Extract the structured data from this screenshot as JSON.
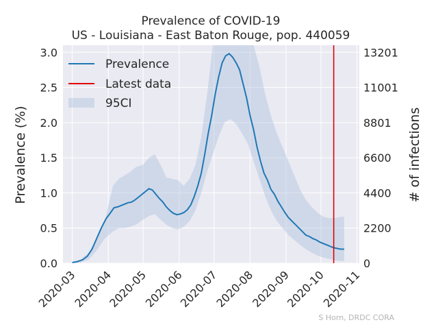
{
  "chart_data": {
    "type": "line",
    "title": "Prevalence of COVID-19",
    "subtitle": "US - Louisiana - East Baton Rouge, pop. 440059",
    "ylabel": "Prevalence (%)",
    "y2label": "# of infections",
    "ylim": [
      0,
      3.1
    ],
    "y2lim": [
      0,
      13642
    ],
    "xlim": [
      "2020-02-22",
      "2020-11-03"
    ],
    "xticks": [
      "2020-03",
      "2020-04",
      "2020-05",
      "2020-06",
      "2020-07",
      "2020-08",
      "2020-09",
      "2020-10",
      "2020-11"
    ],
    "yticks": [
      "0.0",
      "0.5",
      "1.0",
      "1.5",
      "2.0",
      "2.5",
      "3.0"
    ],
    "y2ticks": [
      "0",
      "2200",
      "4400",
      "6600",
      "8801",
      "11001",
      "13201"
    ],
    "grid": true,
    "legend_position": "top-left",
    "legend": [
      "Prevalence",
      "Latest data",
      "95CI"
    ],
    "latest_data_date": "2020-10-12",
    "credit": "S Horn, DRDC CORA",
    "colors": {
      "line": "#1f77b4",
      "band": "#b0c4de",
      "latest": "#e00000",
      "background": "#eaeaf2",
      "grid": "#ffffff"
    },
    "series": [
      {
        "name": "Prevalence",
        "x": [
          "2020-03-01",
          "2020-03-05",
          "2020-03-10",
          "2020-03-14",
          "2020-03-18",
          "2020-03-22",
          "2020-03-26",
          "2020-03-30",
          "2020-04-03",
          "2020-04-06",
          "2020-04-09",
          "2020-04-12",
          "2020-04-15",
          "2020-04-18",
          "2020-04-21",
          "2020-04-24",
          "2020-04-27",
          "2020-04-30",
          "2020-05-03",
          "2020-05-06",
          "2020-05-09",
          "2020-05-12",
          "2020-05-15",
          "2020-05-18",
          "2020-05-21",
          "2020-05-24",
          "2020-05-27",
          "2020-05-30",
          "2020-06-02",
          "2020-06-05",
          "2020-06-08",
          "2020-06-11",
          "2020-06-14",
          "2020-06-17",
          "2020-06-20",
          "2020-06-23",
          "2020-06-26",
          "2020-06-29",
          "2020-07-02",
          "2020-07-05",
          "2020-07-08",
          "2020-07-11",
          "2020-07-14",
          "2020-07-17",
          "2020-07-20",
          "2020-07-23",
          "2020-07-26",
          "2020-07-29",
          "2020-08-01",
          "2020-08-04",
          "2020-08-07",
          "2020-08-10",
          "2020-08-13",
          "2020-08-16",
          "2020-08-19",
          "2020-08-22",
          "2020-08-25",
          "2020-08-28",
          "2020-08-31",
          "2020-09-03",
          "2020-09-06",
          "2020-09-09",
          "2020-09-12",
          "2020-09-15",
          "2020-09-18",
          "2020-09-21",
          "2020-09-24",
          "2020-09-27",
          "2020-09-30",
          "2020-10-03",
          "2020-10-06",
          "2020-10-09",
          "2020-10-12",
          "2020-10-15",
          "2020-10-18",
          "2020-10-21"
        ],
        "y": [
          0.01,
          0.02,
          0.05,
          0.1,
          0.2,
          0.35,
          0.5,
          0.63,
          0.72,
          0.79,
          0.8,
          0.82,
          0.84,
          0.86,
          0.87,
          0.9,
          0.94,
          0.98,
          1.02,
          1.06,
          1.04,
          0.98,
          0.92,
          0.87,
          0.8,
          0.75,
          0.71,
          0.69,
          0.7,
          0.72,
          0.76,
          0.83,
          0.95,
          1.1,
          1.28,
          1.55,
          1.85,
          2.1,
          2.4,
          2.65,
          2.85,
          2.95,
          2.98,
          2.93,
          2.85,
          2.75,
          2.55,
          2.35,
          2.1,
          1.9,
          1.65,
          1.45,
          1.28,
          1.18,
          1.05,
          0.98,
          0.88,
          0.8,
          0.72,
          0.65,
          0.6,
          0.55,
          0.5,
          0.45,
          0.4,
          0.38,
          0.35,
          0.33,
          0.3,
          0.28,
          0.26,
          0.24,
          0.22,
          0.21,
          0.2,
          0.2
        ]
      },
      {
        "name": "95CI",
        "x": [
          "2020-03-01",
          "2020-03-08",
          "2020-03-15",
          "2020-03-22",
          "2020-03-29",
          "2020-04-05",
          "2020-04-10",
          "2020-04-15",
          "2020-04-20",
          "2020-04-25",
          "2020-05-01",
          "2020-05-06",
          "2020-05-11",
          "2020-05-16",
          "2020-05-21",
          "2020-05-26",
          "2020-05-31",
          "2020-06-05",
          "2020-06-10",
          "2020-06-15",
          "2020-06-20",
          "2020-06-25",
          "2020-06-30",
          "2020-07-05",
          "2020-07-10",
          "2020-07-15",
          "2020-07-20",
          "2020-07-25",
          "2020-07-30",
          "2020-08-04",
          "2020-08-09",
          "2020-08-14",
          "2020-08-19",
          "2020-08-24",
          "2020-08-29",
          "2020-09-03",
          "2020-09-08",
          "2020-09-13",
          "2020-09-18",
          "2020-09-23",
          "2020-09-28",
          "2020-10-03",
          "2020-10-08",
          "2020-10-13",
          "2020-10-18",
          "2020-10-21"
        ],
        "upper": [
          0.02,
          0.05,
          0.15,
          0.35,
          0.6,
          1.1,
          1.2,
          1.25,
          1.3,
          1.37,
          1.4,
          1.5,
          1.55,
          1.4,
          1.22,
          1.2,
          1.18,
          1.1,
          1.2,
          1.4,
          1.8,
          2.4,
          3.1,
          3.1,
          3.1,
          3.1,
          3.1,
          3.1,
          3.1,
          3.1,
          2.8,
          2.4,
          2.1,
          1.85,
          1.65,
          1.45,
          1.25,
          1.05,
          0.9,
          0.8,
          0.72,
          0.66,
          0.64,
          0.64,
          0.66,
          0.66
        ],
        "lower": [
          0.0,
          0.01,
          0.05,
          0.18,
          0.35,
          0.45,
          0.5,
          0.5,
          0.52,
          0.55,
          0.62,
          0.67,
          0.7,
          0.62,
          0.55,
          0.5,
          0.48,
          0.52,
          0.6,
          0.75,
          1.0,
          1.3,
          1.55,
          1.8,
          2.0,
          2.05,
          1.98,
          1.85,
          1.7,
          1.45,
          1.2,
          0.95,
          0.75,
          0.6,
          0.5,
          0.4,
          0.33,
          0.26,
          0.2,
          0.15,
          0.11,
          0.08,
          0.06,
          0.04,
          0.03,
          0.03
        ]
      }
    ]
  }
}
